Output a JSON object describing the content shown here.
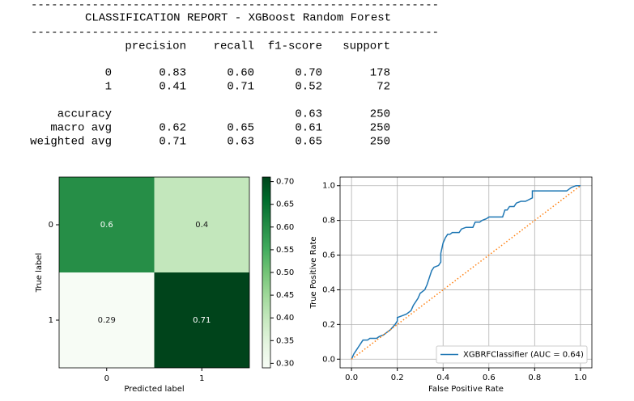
{
  "report": {
    "rule": "------------------------------------------------------------",
    "title": "CLASSIFICATION REPORT - XGBoost Random Forest",
    "columns": [
      "precision",
      "recall",
      "f1-score",
      "support"
    ],
    "rows": [
      {
        "label": "0",
        "cells": [
          "0.83",
          "0.60",
          "0.70",
          "178"
        ]
      },
      {
        "label": "1",
        "cells": [
          "0.41",
          "0.71",
          "0.52",
          "72"
        ]
      },
      {
        "label": "accuracy",
        "cells": [
          null,
          null,
          "0.63",
          "250"
        ]
      },
      {
        "label": "macro avg",
        "cells": [
          "0.62",
          "0.65",
          "0.61",
          "250"
        ]
      },
      {
        "label": "weighted avg",
        "cells": [
          "0.71",
          "0.63",
          "0.65",
          "250"
        ]
      }
    ]
  },
  "chart_data": [
    {
      "type": "heatmap",
      "x_label": "Predicted label",
      "y_label": "True label",
      "x_categories": [
        "0",
        "1"
      ],
      "y_categories": [
        "0",
        "1"
      ],
      "values": [
        [
          0.6,
          0.4
        ],
        [
          0.29,
          0.71
        ]
      ],
      "colormap": "Greens",
      "clim": [
        0.29,
        0.71
      ],
      "cticks": [
        {
          "value": 0.3,
          "label": "0.30"
        },
        {
          "value": 0.35,
          "label": "0.35"
        },
        {
          "value": 0.4,
          "label": "0.40"
        },
        {
          "value": 0.45,
          "label": "0.45"
        },
        {
          "value": 0.5,
          "label": "0.50"
        },
        {
          "value": 0.55,
          "label": "0.55"
        },
        {
          "value": 0.6,
          "label": "0.60"
        },
        {
          "value": 0.65,
          "label": "0.65"
        },
        {
          "value": 0.7,
          "label": "0.70"
        }
      ]
    },
    {
      "type": "line",
      "x_label": "False Positive Rate",
      "y_label": "True Positive Rate",
      "xlim": [
        -0.05,
        1.05
      ],
      "ylim": [
        -0.05,
        1.05
      ],
      "xticks": [
        {
          "value": 0,
          "label": "0.0"
        },
        0.2,
        0.4,
        0.6,
        0.8,
        {
          "value": 1,
          "label": "1.0"
        }
      ],
      "yticks": [
        {
          "value": 0,
          "label": "0.0"
        },
        0.2,
        0.4,
        0.6,
        0.8,
        {
          "value": 1,
          "label": "1.0"
        }
      ],
      "grid": true,
      "legend": "lower right",
      "series": [
        {
          "name": "XGBRFClassifier (AUC = 0.64)",
          "color": "#1f77b4",
          "x": [
            0,
            0.01,
            0.02,
            0.03,
            0.04,
            0.05,
            0.07,
            0.08,
            0.11,
            0.12,
            0.14,
            0.15,
            0.17,
            0.19,
            0.2,
            0.2,
            0.22,
            0.24,
            0.26,
            0.27,
            0.29,
            0.3,
            0.32,
            0.33,
            0.34,
            0.35,
            0.36,
            0.38,
            0.39,
            0.39,
            0.4,
            0.41,
            0.42,
            0.43,
            0.44,
            0.47,
            0.48,
            0.5,
            0.53,
            0.54,
            0.56,
            0.57,
            0.59,
            0.6,
            0.66,
            0.67,
            0.68,
            0.69,
            0.71,
            0.72,
            0.74,
            0.76,
            0.79,
            0.79,
            0.86,
            0.94,
            0.96,
            0.98,
            1
          ],
          "values": [
            0,
            0.03,
            0.05,
            0.07,
            0.09,
            0.11,
            0.11,
            0.12,
            0.12,
            0.13,
            0.14,
            0.15,
            0.17,
            0.2,
            0.22,
            0.24,
            0.25,
            0.26,
            0.28,
            0.31,
            0.35,
            0.38,
            0.4,
            0.43,
            0.47,
            0.51,
            0.53,
            0.54,
            0.56,
            0.61,
            0.67,
            0.7,
            0.72,
            0.72,
            0.73,
            0.73,
            0.75,
            0.76,
            0.76,
            0.79,
            0.79,
            0.8,
            0.81,
            0.82,
            0.82,
            0.86,
            0.86,
            0.88,
            0.88,
            0.9,
            0.91,
            0.91,
            0.93,
            0.97,
            0.97,
            0.97,
            0.99,
            1,
            1
          ]
        },
        {
          "color": "#ff7f0e",
          "style": "dotted",
          "x": [
            0,
            1
          ],
          "values": [
            0,
            1
          ]
        }
      ]
    }
  ]
}
